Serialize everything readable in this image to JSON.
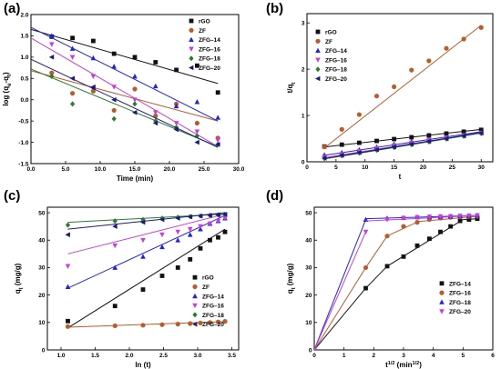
{
  "chart_data": [
    {
      "id": "a",
      "panel_label": "(a)",
      "type": "scatter",
      "xlabel": "Time (min)",
      "ylabel": "log (qe-qt)",
      "xlim": [
        0,
        30
      ],
      "ylim": [
        -1.5,
        2.0
      ],
      "xticks": [
        0,
        5,
        10,
        15,
        20,
        25,
        30
      ],
      "yticks": [
        -1.5,
        -1.0,
        -0.5,
        0.0,
        0.5,
        1.0,
        1.5,
        2.0
      ],
      "tick_decimals": 1,
      "legend": "top-right",
      "series": [
        {
          "name": "rGO",
          "marker": "square",
          "color": "#111111",
          "line": "#111111",
          "x": [
            3,
            6,
            9,
            12,
            15,
            18,
            21,
            24,
            27
          ],
          "y": [
            1.48,
            1.45,
            1.38,
            1.08,
            1.0,
            0.88,
            0.7,
            0.8,
            0.17
          ],
          "fit": {
            "x": [
              0,
              27
            ],
            "y": [
              1.65,
              0.38
            ]
          }
        },
        {
          "name": "ZF",
          "marker": "circle",
          "color": "#b85c2c",
          "line": "#b85c2c",
          "x": [
            3,
            6,
            9,
            12,
            15,
            18,
            21,
            24,
            27
          ],
          "y": [
            0.63,
            0.15,
            0.2,
            -0.25,
            0.25,
            -0.38,
            -0.1,
            -0.55,
            -0.9
          ],
          "fit": {
            "x": [
              0,
              27
            ],
            "y": [
              0.68,
              -0.5
            ]
          }
        },
        {
          "name": "ZFG–14",
          "marker": "triangle",
          "color": "#2323d6",
          "line": "#2323d6",
          "x": [
            3,
            6,
            9,
            12,
            15,
            18,
            21,
            24,
            27
          ],
          "y": [
            1.5,
            1.2,
            0.98,
            0.78,
            0.55,
            0.32,
            -0.15,
            -0.05,
            -0.42
          ],
          "fit": {
            "x": [
              0,
              27
            ],
            "y": [
              1.7,
              -0.5
            ]
          }
        },
        {
          "name": "ZFG–16",
          "marker": "triangle-down",
          "color": "#c63fd8",
          "line": "#c63fd8",
          "x": [
            3,
            6,
            9,
            12,
            15,
            18,
            21,
            24,
            27
          ],
          "y": [
            1.3,
            1.0,
            0.55,
            0.3,
            0.0,
            -0.3,
            -0.55,
            -0.75,
            -0.95
          ],
          "fit": {
            "x": [
              0,
              27
            ],
            "y": [
              1.45,
              -1.1
            ]
          }
        },
        {
          "name": "ZFG–18",
          "marker": "diamond",
          "color": "#2d7a2d",
          "line": "#2d7a2d",
          "x": [
            3,
            6,
            9,
            12,
            15,
            18,
            21,
            24,
            27
          ],
          "y": [
            0.55,
            -0.1,
            0.28,
            -0.45,
            -0.1,
            -0.5,
            -0.65,
            -0.85,
            -1.05
          ],
          "fit": {
            "x": [
              0,
              27
            ],
            "y": [
              0.72,
              -1.1
            ]
          }
        },
        {
          "name": "ZFG–20",
          "marker": "triangle-left",
          "color": "#1a1a7a",
          "line": "#1a1a7a",
          "x": [
            3,
            6,
            9,
            12,
            15,
            18,
            21,
            24,
            27
          ],
          "y": [
            1.0,
            0.5,
            0.3,
            0.0,
            -0.3,
            -0.55,
            -0.7,
            -1.0,
            -1.05
          ],
          "fit": {
            "x": [
              0,
              27
            ],
            "y": [
              0.95,
              -1.12
            ]
          }
        }
      ]
    },
    {
      "id": "b",
      "panel_label": "(b)",
      "type": "scatter",
      "xlabel": "t",
      "ylabel": "t/qt",
      "xlim": [
        0,
        32
      ],
      "ylim": [
        0,
        3.2
      ],
      "xticks": [
        0,
        5,
        10,
        15,
        20,
        25,
        30
      ],
      "yticks": [
        0,
        1,
        2,
        3
      ],
      "tick_decimals": 0,
      "legend": "top-left",
      "series": [
        {
          "name": "rGO",
          "marker": "square",
          "color": "#111111",
          "line": "#111111",
          "x": [
            3,
            6,
            9,
            12,
            15,
            18,
            21,
            24,
            27,
            30
          ],
          "y": [
            0.33,
            0.37,
            0.41,
            0.45,
            0.49,
            0.53,
            0.57,
            0.61,
            0.65,
            0.69
          ],
          "fit": {
            "x": [
              3,
              30
            ],
            "y": [
              0.32,
              0.7
            ]
          }
        },
        {
          "name": "ZF",
          "marker": "circle",
          "color": "#b85c2c",
          "line": "#b85c2c",
          "x": [
            3,
            6,
            9,
            12,
            15,
            18,
            21,
            24,
            27,
            30
          ],
          "y": [
            0.32,
            0.7,
            1.02,
            1.42,
            1.62,
            1.98,
            2.18,
            2.45,
            2.65,
            2.9
          ],
          "fit": {
            "x": [
              3,
              30
            ],
            "y": [
              0.3,
              2.95
            ]
          }
        },
        {
          "name": "ZFG–14",
          "marker": "triangle",
          "color": "#2323d6",
          "line": "#2323d6",
          "x": [
            3,
            6,
            9,
            12,
            15,
            18,
            21,
            24,
            27,
            30
          ],
          "y": [
            0.15,
            0.2,
            0.26,
            0.32,
            0.38,
            0.44,
            0.49,
            0.54,
            0.59,
            0.64
          ],
          "fit": {
            "x": [
              3,
              30
            ],
            "y": [
              0.14,
              0.65
            ]
          }
        },
        {
          "name": "ZFG–16",
          "marker": "triangle-down",
          "color": "#c63fd8",
          "line": "#c63fd8",
          "x": [
            3,
            6,
            9,
            12,
            15,
            18,
            21,
            24,
            27,
            30
          ],
          "y": [
            0.1,
            0.16,
            0.23,
            0.29,
            0.35,
            0.41,
            0.47,
            0.52,
            0.57,
            0.62
          ],
          "fit": {
            "x": [
              3,
              30
            ],
            "y": [
              0.09,
              0.63
            ]
          }
        },
        {
          "name": "ZFG–18",
          "marker": "diamond",
          "color": "#2d7a2d",
          "line": "#2d7a2d",
          "x": [
            3,
            6,
            9,
            12,
            15,
            18,
            21,
            24,
            27,
            30
          ],
          "y": [
            0.07,
            0.13,
            0.19,
            0.25,
            0.31,
            0.37,
            0.43,
            0.49,
            0.55,
            0.61
          ],
          "fit": {
            "x": [
              3,
              30
            ],
            "y": [
              0.06,
              0.62
            ]
          }
        },
        {
          "name": "ZFG–20",
          "marker": "triangle-left",
          "color": "#1a1a7a",
          "line": "#1a1a7a",
          "x": [
            3,
            6,
            9,
            12,
            15,
            18,
            21,
            24,
            27,
            30
          ],
          "y": [
            0.08,
            0.14,
            0.2,
            0.26,
            0.32,
            0.38,
            0.44,
            0.5,
            0.56,
            0.62
          ],
          "fit": {
            "x": [
              3,
              30
            ],
            "y": [
              0.07,
              0.63
            ]
          }
        }
      ]
    },
    {
      "id": "c",
      "panel_label": "(c)",
      "type": "scatter",
      "xlabel": "ln (t)",
      "ylabel": "qt (mg/g)",
      "xlim": [
        0.8,
        3.6
      ],
      "ylim": [
        0,
        52
      ],
      "xticks": [
        1.0,
        1.5,
        2.0,
        2.5,
        3.0,
        3.5
      ],
      "yticks": [
        0,
        10,
        20,
        30,
        40,
        50
      ],
      "tick_decimals_x": 1,
      "tick_decimals_y": 0,
      "legend": "bottom-right",
      "series": [
        {
          "name": "rGO",
          "marker": "square",
          "color": "#111111",
          "line": "#111111",
          "x": [
            1.1,
            1.79,
            2.2,
            2.48,
            2.71,
            2.89,
            3.04,
            3.18,
            3.3,
            3.4
          ],
          "y": [
            10.5,
            16,
            22,
            27,
            30,
            33,
            37,
            40,
            41,
            43
          ],
          "fit": {
            "x": [
              1.1,
              3.4
            ],
            "y": [
              8.0,
              44.0
            ]
          }
        },
        {
          "name": "ZF",
          "marker": "circle",
          "color": "#b85c2c",
          "line": "#b85c2c",
          "x": [
            1.1,
            1.79,
            2.2,
            2.48,
            2.71,
            2.89,
            3.04,
            3.18,
            3.3,
            3.4
          ],
          "y": [
            8.5,
            8.8,
            9.0,
            9.2,
            9.4,
            9.6,
            9.8,
            10.0,
            10.2,
            10.4
          ],
          "fit": {
            "x": [
              1.1,
              3.4
            ],
            "y": [
              8.3,
              10.3
            ]
          }
        },
        {
          "name": "ZFG–14",
          "marker": "triangle",
          "color": "#2323d6",
          "line": "#2323d6",
          "x": [
            1.1,
            1.79,
            2.2,
            2.48,
            2.71,
            2.89,
            3.04,
            3.18,
            3.3,
            3.4
          ],
          "y": [
            23,
            30,
            34,
            37.5,
            40,
            42,
            44,
            46,
            47,
            48
          ],
          "fit": {
            "x": [
              1.1,
              3.4
            ],
            "y": [
              22.5,
              49.0
            ]
          }
        },
        {
          "name": "ZFG–16",
          "marker": "triangle-down",
          "color": "#c63fd8",
          "line": "#c63fd8",
          "x": [
            1.1,
            1.79,
            2.2,
            2.48,
            2.71,
            2.89,
            3.04,
            3.18,
            3.3,
            3.4
          ],
          "y": [
            30.5,
            38,
            40,
            42,
            43,
            44,
            45,
            46,
            47,
            48
          ],
          "fit": {
            "x": [
              1.1,
              3.4
            ],
            "y": [
              35.0,
              49.5
            ]
          }
        },
        {
          "name": "ZFG–18",
          "marker": "diamond",
          "color": "#2d7a2d",
          "line": "#2d7a2d",
          "x": [
            1.1,
            1.79,
            2.2,
            2.48,
            2.71,
            2.89,
            3.04,
            3.18,
            3.3,
            3.4
          ],
          "y": [
            45.5,
            47,
            47.5,
            48,
            48.3,
            48.6,
            48.8,
            49,
            49.2,
            49.4
          ],
          "fit": {
            "x": [
              1.1,
              3.4
            ],
            "y": [
              46.5,
              49.5
            ]
          }
        },
        {
          "name": "ZFG–20",
          "marker": "triangle-left",
          "color": "#1a1a7a",
          "line": "#1a1a7a",
          "x": [
            1.1,
            1.79,
            2.2,
            2.48,
            2.71,
            2.89,
            3.04,
            3.18,
            3.3,
            3.4
          ],
          "y": [
            42,
            45,
            46.5,
            47.5,
            48,
            48.5,
            48.8,
            49,
            49.2,
            49.4
          ],
          "fit": {
            "x": [
              1.1,
              3.4
            ],
            "y": [
              44.0,
              50.0
            ]
          }
        }
      ]
    },
    {
      "id": "d",
      "panel_label": "(d)",
      "type": "scatter",
      "xlabel": "t1/2 (min1/2)",
      "ylabel": "qt (mg/g)",
      "xlim": [
        0,
        6
      ],
      "ylim": [
        0,
        52
      ],
      "xticks": [
        0,
        1,
        2,
        3,
        4,
        5,
        6
      ],
      "yticks": [
        0,
        10,
        20,
        30,
        40,
        50
      ],
      "tick_decimals": 0,
      "legend": "bottom-right",
      "series": [
        {
          "name": "ZFG–14",
          "marker": "square",
          "color": "#111111",
          "line": "#111111",
          "x": [
            0,
            1.73,
            2.45,
            3.0,
            3.46,
            3.87,
            4.24,
            4.58,
            4.9,
            5.2,
            5.48
          ],
          "y": [
            0,
            22.5,
            30.5,
            34,
            38,
            40.5,
            43,
            45,
            47,
            47.5,
            47.8
          ],
          "fit_segments": [
            {
              "x": [
                0,
                1.73
              ],
              "y": [
                0,
                22.5
              ]
            },
            {
              "x": [
                1.73,
                2.45
              ],
              "y": [
                22.5,
                30.5
              ]
            },
            {
              "x": [
                2.45,
                5.0
              ],
              "y": [
                30.5,
                47.5
              ]
            },
            {
              "x": [
                5.0,
                5.5
              ],
              "y": [
                47.5,
                47.8
              ]
            }
          ]
        },
        {
          "name": "ZFG–16",
          "marker": "circle",
          "color": "#b85c2c",
          "line": "#b85c2c",
          "x": [
            0,
            1.73,
            2.45,
            3.0,
            3.46,
            3.87,
            4.24,
            4.58,
            4.9,
            5.2,
            5.48
          ],
          "y": [
            0,
            30,
            41.5,
            45,
            46.5,
            47.5,
            48,
            48.3,
            48.5,
            48.6,
            48.7
          ],
          "fit_segments": [
            {
              "x": [
                0,
                1.73
              ],
              "y": [
                0,
                30
              ]
            },
            {
              "x": [
                1.73,
                2.45
              ],
              "y": [
                30,
                41.5
              ]
            },
            {
              "x": [
                2.45,
                3.5
              ],
              "y": [
                41.5,
                46.8
              ]
            },
            {
              "x": [
                3.5,
                5.5
              ],
              "y": [
                46.8,
                48.7
              ]
            }
          ]
        },
        {
          "name": "ZFG–18",
          "marker": "triangle",
          "color": "#2323d6",
          "line": "#2323d6",
          "x": [
            0,
            1.73,
            2.45,
            3.0,
            3.46,
            3.87,
            4.24,
            4.58,
            4.9,
            5.2,
            5.48
          ],
          "y": [
            0,
            47.5,
            48,
            48.2,
            48.4,
            48.5,
            48.6,
            48.7,
            48.8,
            48.9,
            49
          ],
          "fit_segments": [
            {
              "x": [
                0,
                1.73
              ],
              "y": [
                0,
                47.5
              ]
            },
            {
              "x": [
                1.73,
                5.5
              ],
              "y": [
                47.8,
                49
              ]
            }
          ]
        },
        {
          "name": "ZFG–20",
          "marker": "triangle-down",
          "color": "#c63fd8",
          "line": "#c63fd8",
          "x": [
            0,
            1.73,
            2.45,
            3.0,
            3.46,
            3.87,
            4.24,
            4.58,
            4.9,
            5.2,
            5.48
          ],
          "y": [
            0,
            43,
            47.5,
            48,
            48.3,
            48.5,
            48.6,
            48.7,
            48.8,
            48.9,
            49
          ],
          "fit_segments": [
            {
              "x": [
                0,
                1.73
              ],
              "y": [
                0,
                43
              ]
            },
            {
              "x": [
                1.73,
                5.5
              ],
              "y": [
                47.0,
                49
              ]
            }
          ]
        }
      ]
    }
  ]
}
